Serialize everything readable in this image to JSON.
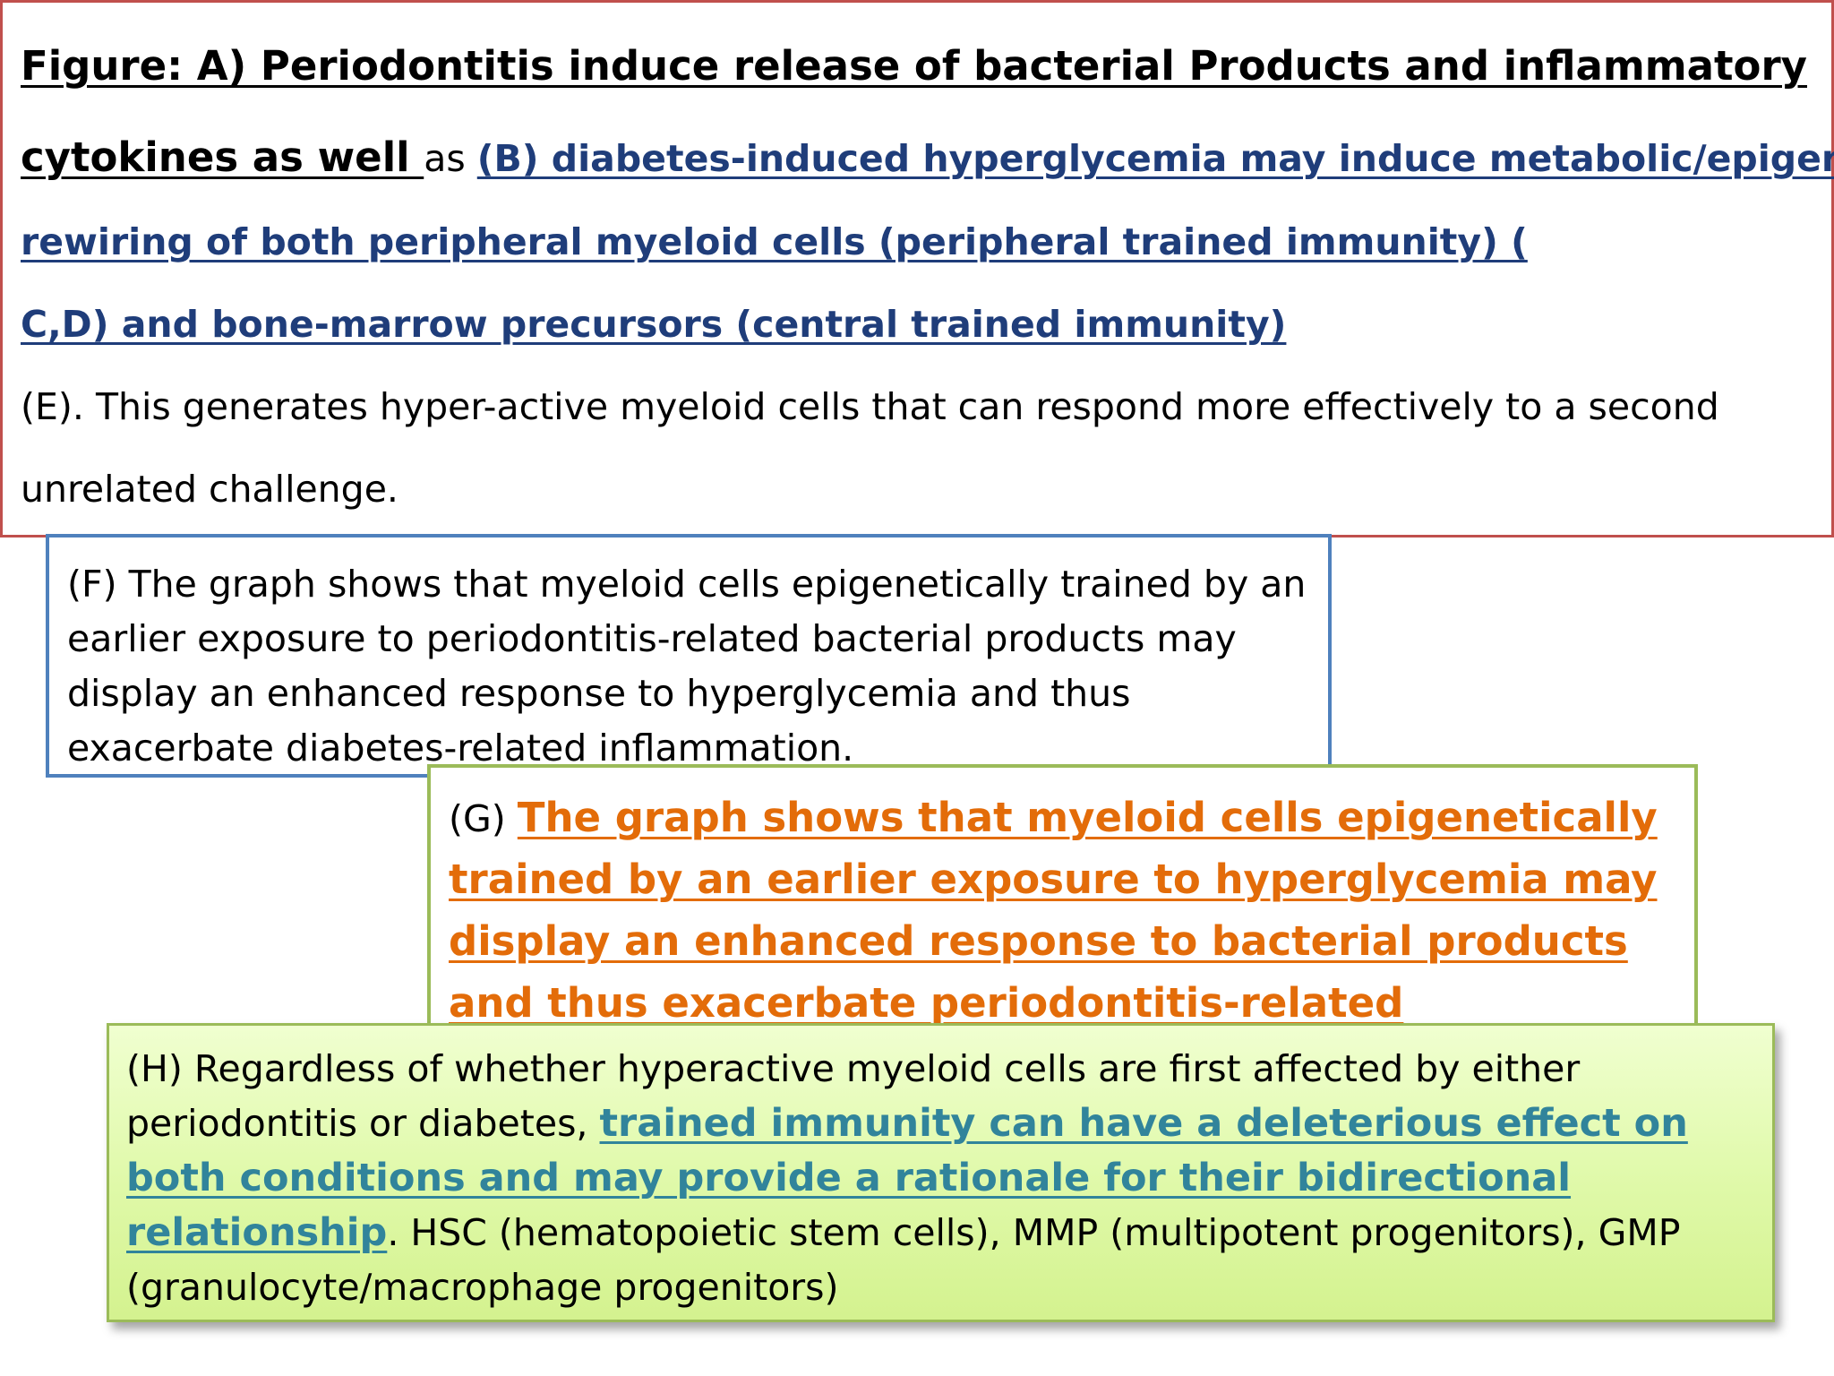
{
  "box_a": {
    "title_line1": "Figure:  A) Periodontitis induce release of bacterial Products and inflammatory",
    "title_line2_bold": "cytokines as well ",
    "title_line2_plain": "as ",
    "title_line2_blue": "(B) diabetes-induced hyperglycemia may induce metabolic/epigenetic",
    "line3_blue": "rewiring of both peripheral myeloid cells (peripheral trained immunity) (",
    "line4_blue": "C,D) and bone-marrow precursors (central trained immunity)",
    "line5": "(E). This generates hyper-active myeloid cells that can respond more effectively to a second",
    "line6": "unrelated challenge."
  },
  "box_f": {
    "text": "(F) The graph shows that myeloid cells epigenetically trained by an earlier exposure to periodontitis-related bacterial products may display an enhanced response to hyperglycemia and thus exacerbate diabetes-related inflammation."
  },
  "box_g": {
    "prefix": "(G) ",
    "emphasis": "The graph shows that myeloid cells epigenetically trained by an earlier exposure to hyperglycemia may display an enhanced response to bacterial products and thus exacerbate periodontitis-related inflammation",
    "suffix": "."
  },
  "box_h": {
    "prefix": "(H) Regardless of whether hyperactive myeloid cells are first affected by either periodontitis or diabetes, ",
    "emphasis": "trained immunity can have a deleterious effect on both conditions and may provide a rationale for their bidirectional relationship",
    "suffix": ". HSC (hematopoietic stem cells), MMP (multipotent progenitors), GMP (granulocyte/macrophage progenitors)"
  },
  "colors": {
    "box_a_border": "#c0504d",
    "box_f_border": "#4f81bd",
    "box_g_border": "#9bbb59",
    "box_h_border": "#9bbb59",
    "blue_text": "#1f3d7a",
    "orange_text": "#e36c09",
    "teal_text": "#31849b"
  }
}
